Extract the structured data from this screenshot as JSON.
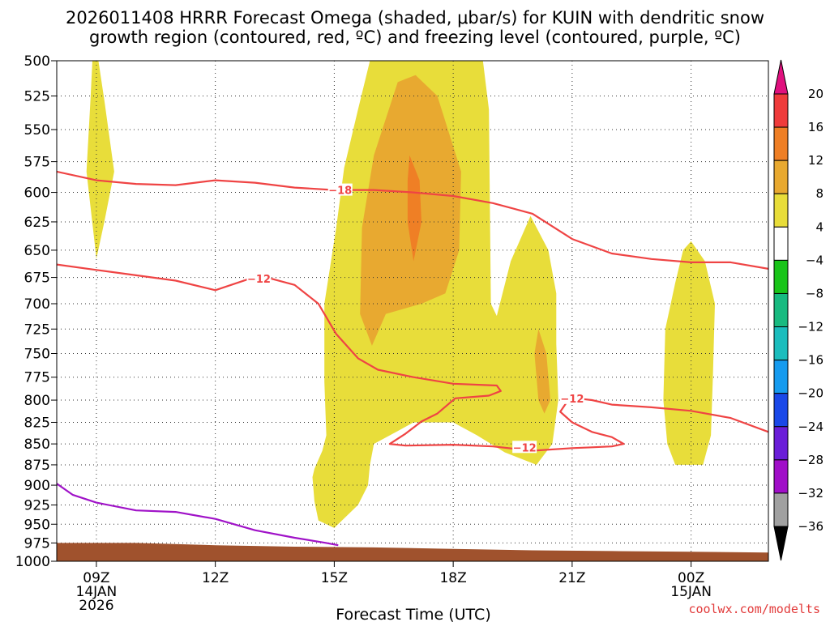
{
  "chart_data": {
    "type": "time-height contour",
    "title_line1": "2026011408 HRRR Forecast Omega (shaded, μbar/s) for KUIN with dendritic snow",
    "title_line2": "growth region (contoured, red, ºC) and freezing level (contoured, purple, ºC)",
    "xlabel": "Forecast Time (UTC)",
    "credit": "coolwx.com/modelts",
    "pressure_levels": [
      500,
      525,
      550,
      575,
      600,
      625,
      650,
      675,
      700,
      725,
      750,
      775,
      800,
      825,
      850,
      875,
      900,
      925,
      950,
      975,
      1000
    ],
    "pressure_labels": [
      "500",
      "525",
      "550",
      "575",
      "600",
      "625",
      "650",
      "675",
      "700",
      "725",
      "750",
      "775",
      "800",
      "825",
      "850",
      "875",
      "900",
      "925",
      "950",
      "975",
      "1000"
    ],
    "time_range_hours": [
      8,
      25.95
    ],
    "x_ticks": [
      {
        "hour": 9,
        "lines": [
          "09Z",
          "14JAN",
          "2026"
        ]
      },
      {
        "hour": 12,
        "lines": [
          "12Z"
        ]
      },
      {
        "hour": 15,
        "lines": [
          "15Z"
        ]
      },
      {
        "hour": 18,
        "lines": [
          "18Z"
        ]
      },
      {
        "hour": 21,
        "lines": [
          "21Z"
        ]
      },
      {
        "hour": 24,
        "lines": [
          "00Z",
          "15JAN"
        ]
      }
    ],
    "colorbar": {
      "labels": [
        "20",
        "16",
        "12",
        "8",
        "4",
        "−4",
        "−8",
        "−12",
        "−16",
        "−20",
        "−24",
        "−28",
        "−32",
        "−36"
      ],
      "colors": [
        "#ef3b3b",
        "#ef7f25",
        "#e8a930",
        "#e8dd3a",
        "#ffffff",
        "#19c419",
        "#18ba80",
        "#1bbdbd",
        "#169bef",
        "#1a48e8",
        "#6a1ed8",
        "#a00ec8",
        "#a0a0a0"
      ],
      "top_triangle_color": "#e0107e",
      "bottom_triangle_color": "#000000"
    },
    "omega_colors": {
      "yellow": "#e8dd3a",
      "light_orange": "#e8a930",
      "orange": "#ef7f25",
      "terrain": "#a0522d"
    },
    "omega_regions": [
      {
        "name": "early plume",
        "range_ubar_s": "4-8",
        "polygon": [
          [
            8.9,
            500
          ],
          [
            9.05,
            500
          ],
          [
            9.2,
            528
          ],
          [
            9.45,
            583
          ],
          [
            9.2,
            625
          ],
          [
            9.0,
            658
          ],
          [
            8.95,
            642
          ],
          [
            8.75,
            583
          ],
          [
            8.85,
            528
          ]
        ]
      },
      {
        "name": "main plume",
        "range_ubar_s": "4-8",
        "polygon": [
          [
            15.9,
            500
          ],
          [
            18.75,
            500
          ],
          [
            18.9,
            535
          ],
          [
            18.95,
            700
          ],
          [
            19.1,
            712
          ],
          [
            19.45,
            660
          ],
          [
            19.95,
            620
          ],
          [
            20.4,
            650
          ],
          [
            20.6,
            690
          ],
          [
            20.6,
            740
          ],
          [
            20.65,
            800
          ],
          [
            20.5,
            850
          ],
          [
            20.1,
            875
          ],
          [
            19.3,
            860
          ],
          [
            18.6,
            840
          ],
          [
            18.0,
            825
          ],
          [
            17.0,
            825
          ],
          [
            16.6,
            835
          ],
          [
            16.0,
            850
          ],
          [
            15.9,
            875
          ],
          [
            15.85,
            900
          ],
          [
            15.6,
            925
          ],
          [
            15.0,
            955
          ],
          [
            14.6,
            945
          ],
          [
            14.5,
            920
          ],
          [
            14.45,
            890
          ],
          [
            14.5,
            880
          ],
          [
            14.7,
            858
          ],
          [
            14.8,
            840
          ],
          [
            14.75,
            780
          ],
          [
            14.75,
            700
          ],
          [
            15.05,
            630
          ],
          [
            15.25,
            580
          ],
          [
            15.6,
            535
          ]
        ]
      },
      {
        "name": "main core",
        "range_ubar_s": "8-12",
        "polygon": [
          [
            16.6,
            515
          ],
          [
            17.05,
            510
          ],
          [
            17.6,
            525
          ],
          [
            18.2,
            583
          ],
          [
            18.15,
            650
          ],
          [
            17.8,
            690
          ],
          [
            17.2,
            700
          ],
          [
            16.3,
            710
          ],
          [
            15.95,
            742
          ],
          [
            15.65,
            710
          ],
          [
            15.7,
            630
          ],
          [
            16.0,
            570
          ]
        ]
      },
      {
        "name": "peak core",
        "range_ubar_s": "12-16",
        "polygon": [
          [
            16.9,
            570
          ],
          [
            17.15,
            590
          ],
          [
            17.2,
            625
          ],
          [
            17.0,
            660
          ],
          [
            16.85,
            625
          ],
          [
            16.85,
            590
          ]
        ]
      },
      {
        "name": "secondary core",
        "range_ubar_s": "8-12",
        "polygon": [
          [
            20.15,
            725
          ],
          [
            20.35,
            750
          ],
          [
            20.45,
            800
          ],
          [
            20.3,
            815
          ],
          [
            20.15,
            800
          ],
          [
            20.05,
            750
          ]
        ]
      },
      {
        "name": "late plume",
        "range_ubar_s": "4-8",
        "polygon": [
          [
            24.0,
            642
          ],
          [
            24.35,
            660
          ],
          [
            24.6,
            700
          ],
          [
            24.55,
            775
          ],
          [
            24.5,
            840
          ],
          [
            24.3,
            875
          ],
          [
            23.6,
            875
          ],
          [
            23.4,
            850
          ],
          [
            23.3,
            800
          ],
          [
            23.35,
            725
          ],
          [
            23.6,
            680
          ],
          [
            23.8,
            650
          ]
        ]
      }
    ],
    "isotherms": [
      {
        "label": "−18",
        "points": [
          [
            8,
            583
          ],
          [
            9,
            590
          ],
          [
            10,
            593
          ],
          [
            11,
            594
          ],
          [
            12,
            590
          ],
          [
            13,
            592
          ],
          [
            14,
            596
          ],
          [
            15,
            598
          ],
          [
            16,
            598
          ],
          [
            17,
            600
          ],
          [
            18,
            603
          ],
          [
            19,
            609
          ],
          [
            20,
            618
          ],
          [
            21,
            640
          ],
          [
            22,
            653
          ],
          [
            23,
            658
          ],
          [
            24,
            661
          ],
          [
            25,
            661
          ],
          [
            25.95,
            667
          ]
        ]
      },
      {
        "label": "−12",
        "points": [
          [
            8,
            663
          ],
          [
            9,
            668
          ],
          [
            10,
            673
          ],
          [
            11,
            678
          ],
          [
            12,
            687
          ],
          [
            12.8,
            677
          ],
          [
            13.4,
            676
          ],
          [
            14.0,
            682
          ],
          [
            14.6,
            700
          ],
          [
            15.05,
            730
          ],
          [
            15.6,
            755
          ],
          [
            16.1,
            767
          ],
          [
            17.0,
            775
          ],
          [
            18.0,
            782
          ],
          [
            19.1,
            784
          ],
          [
            19.2,
            790
          ],
          [
            18.9,
            795
          ],
          [
            18.05,
            798
          ],
          [
            17.6,
            815
          ],
          [
            17.2,
            824
          ],
          [
            16.8,
            838
          ],
          [
            16.4,
            850
          ],
          [
            16.8,
            852
          ],
          [
            18.0,
            851
          ],
          [
            19.0,
            853
          ],
          [
            20.0,
            858
          ],
          [
            21.0,
            855
          ],
          [
            21.5,
            854
          ],
          [
            22.0,
            853
          ],
          [
            22.3,
            850
          ],
          [
            22.0,
            842
          ],
          [
            21.5,
            836
          ],
          [
            21.0,
            825
          ],
          [
            20.7,
            813
          ],
          [
            20.9,
            800
          ],
          [
            21.1,
            798
          ],
          [
            21.5,
            800
          ],
          [
            22.0,
            805
          ],
          [
            23.0,
            808
          ],
          [
            24.0,
            812
          ],
          [
            25.0,
            820
          ],
          [
            25.95,
            836
          ]
        ]
      }
    ],
    "freezing_level": {
      "points": [
        [
          8,
          898
        ],
        [
          8.4,
          912
        ],
        [
          9,
          922
        ],
        [
          10,
          932
        ],
        [
          11,
          934
        ],
        [
          12,
          943
        ],
        [
          13,
          958
        ],
        [
          14,
          968
        ],
        [
          14.8,
          975
        ],
        [
          15.1,
          978
        ]
      ]
    },
    "terrain_top": [
      [
        8,
        975
      ],
      [
        10,
        975
      ],
      [
        12,
        978
      ],
      [
        14,
        980
      ],
      [
        16,
        981
      ],
      [
        18,
        983
      ],
      [
        20,
        985
      ],
      [
        22,
        986
      ],
      [
        24,
        987
      ],
      [
        25.95,
        988
      ]
    ]
  }
}
